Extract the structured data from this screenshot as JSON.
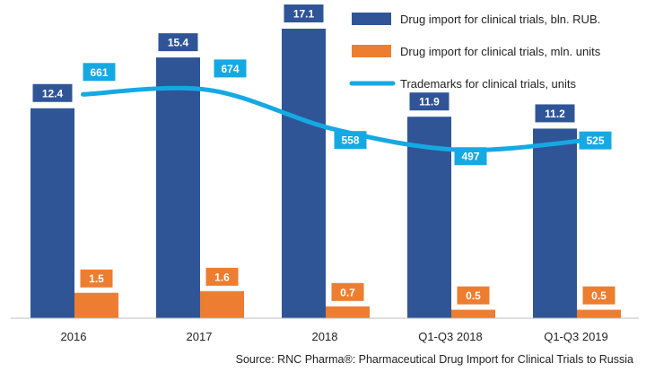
{
  "chart_data": {
    "type": "bar",
    "categories": [
      "2016",
      "2017",
      "2018",
      "Q1-Q3  2018",
      "Q1-Q3  2019"
    ],
    "series": [
      {
        "name": "Drug import for clinical trials, bln. RUB.",
        "kind": "bar",
        "color": "#2f5597",
        "values": [
          12.4,
          15.4,
          17.1,
          11.9,
          11.2
        ],
        "labels": [
          "12.4",
          "15.4",
          "17.1",
          "11.9",
          "11.2"
        ]
      },
      {
        "name": "Drug import for clinical trials, mln. units",
        "kind": "bar",
        "color": "#ed7d31",
        "values": [
          1.5,
          1.6,
          0.7,
          0.5,
          0.5
        ],
        "labels": [
          "1.5",
          "1.6",
          "0.7",
          "0.5",
          "0.5"
        ]
      },
      {
        "name": "Trademarks for clinical trials, units",
        "kind": "line",
        "color": "#15a9e3",
        "values": [
          661,
          674,
          558,
          497,
          525
        ],
        "labels": [
          "661",
          "674",
          "558",
          "497",
          "525"
        ]
      }
    ],
    "ylim_bars": [
      0,
      18
    ],
    "ylim_line": [
      0,
      900
    ],
    "grid": false,
    "legend_position": "top-right",
    "source": "Source: RNC Pharma®:  Pharmaceutical Drug Import for Clinical Trials to Russia"
  }
}
